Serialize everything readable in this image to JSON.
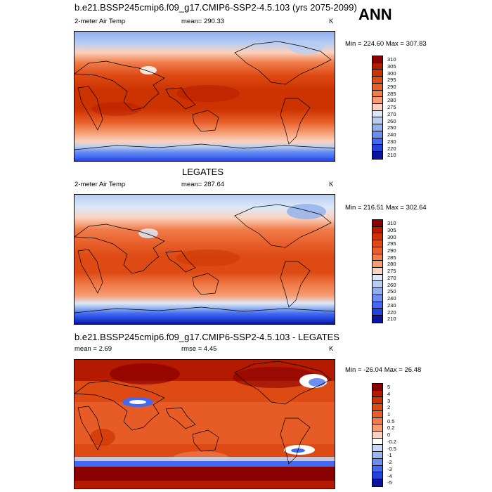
{
  "title": "b.e21.BSSP245cmip6.f09_g17.CMIP6-SSP2-4.5.103 (yrs 2075-2099)",
  "season": "ANN",
  "panels": [
    {
      "heading": "",
      "left_label": "2-meter Air Temp",
      "center_label": "mean= 290.33",
      "unit": "K",
      "minmax": "Min = 224.60 Max = 307.83",
      "levels": [
        "310",
        "305",
        "300",
        "295",
        "290",
        "285",
        "280",
        "275",
        "270",
        "260",
        "250",
        "240",
        "230",
        "220",
        "210"
      ],
      "colors": [
        "#8b0000",
        "#b31a00",
        "#cc3300",
        "#dd4a14",
        "#e85f2a",
        "#f07c4a",
        "#f59c73",
        "#fbd2bd",
        "#dce8f7",
        "#b7cdf2",
        "#8fb0ee",
        "#6b8ef0",
        "#4169f2",
        "#2244db",
        "#0a149c"
      ]
    },
    {
      "heading": "LEGATES",
      "left_label": "2-meter Air Temp",
      "center_label": "mean= 287.64",
      "unit": "K",
      "minmax": "Min = 216.51 Max = 302.64",
      "levels": [
        "310",
        "305",
        "300",
        "295",
        "290",
        "285",
        "280",
        "275",
        "270",
        "260",
        "250",
        "240",
        "230",
        "220",
        "210"
      ],
      "colors": [
        "#8b0000",
        "#b31a00",
        "#cc3300",
        "#dd4a14",
        "#e85f2a",
        "#f07c4a",
        "#f59c73",
        "#fbd2bd",
        "#dce8f7",
        "#b7cdf2",
        "#8fb0ee",
        "#6b8ef0",
        "#4169f2",
        "#2244db",
        "#0a149c"
      ]
    },
    {
      "heading": "b.e21.BSSP245cmip6.f09_g17.CMIP6-SSP2-4.5.103 - LEGATES",
      "left_label": "mean =   2.69",
      "center_label": "rmse =   4.45",
      "unit": "K",
      "minmax": "Min = -26.04 Max =  26.48",
      "levels": [
        "5",
        "4",
        "3",
        "2",
        "1",
        "0.5",
        "0.2",
        "0",
        "-0.2",
        "-0.5",
        "-1",
        "-2",
        "-3",
        "-4",
        "-5"
      ],
      "colors": [
        "#8b0000",
        "#b31a00",
        "#cc3300",
        "#dd4a14",
        "#e85f2a",
        "#f07c4a",
        "#f59c73",
        "#fbd2bd",
        "#ffffff",
        "#c6d8f5",
        "#9ab7ef",
        "#6b8ef0",
        "#4169f2",
        "#2244db",
        "#0a149c"
      ]
    }
  ]
}
